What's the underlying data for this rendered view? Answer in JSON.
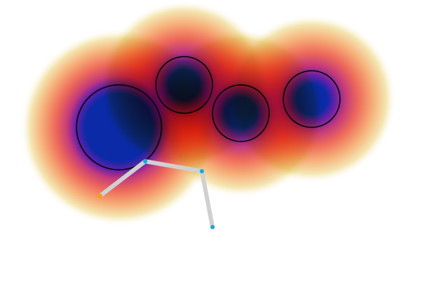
{
  "scene": {
    "background": "#ffffff",
    "obstacle_count": 4,
    "obstacles": [
      {
        "name": "obstacle-1"
      },
      {
        "name": "obstacle-2"
      },
      {
        "name": "obstacle-3"
      },
      {
        "name": "obstacle-4"
      }
    ],
    "arm": {
      "joint_count": 4,
      "link_color": "#d0d0d0",
      "joint_color": "#1aa7d8",
      "base_color": "#f0a020"
    },
    "field_colors": {
      "core": "#0a2aa8",
      "inner": "#7a1fa0",
      "mid": "#d94a6a",
      "outer": "#f4a36a",
      "fade": "#f5f0c0"
    },
    "outline_color": "#000000"
  }
}
